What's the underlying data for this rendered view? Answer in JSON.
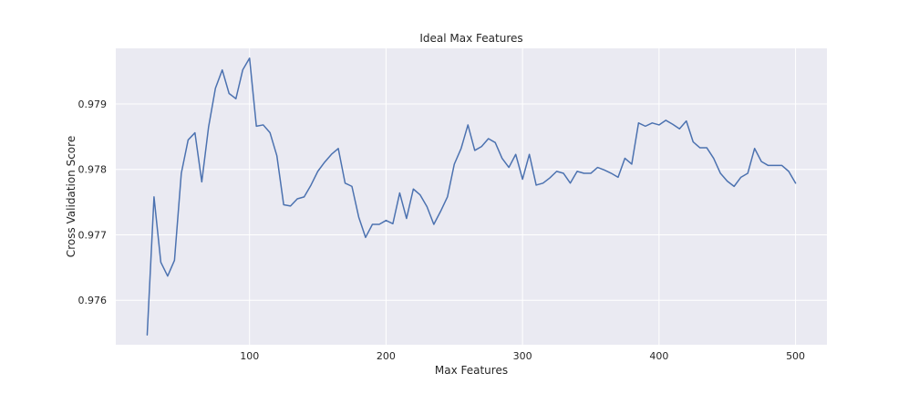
{
  "chart_data": {
    "type": "line",
    "title": "Ideal Max Features",
    "xlabel": "Max Features",
    "ylabel": "Cross Validation Score",
    "xlim": [
      2,
      523
    ],
    "ylim": [
      0.97532,
      0.97985
    ],
    "xticks": [
      100,
      200,
      300,
      400,
      500
    ],
    "xtick_labels": [
      "100",
      "200",
      "300",
      "400",
      "500"
    ],
    "yticks": [
      0.976,
      0.977,
      0.978,
      0.979
    ],
    "ytick_labels": [
      "0.976",
      "0.977",
      "0.978",
      "0.979"
    ],
    "grid": true,
    "colors": {
      "background": "#eaeaf2",
      "grid": "#ffffff",
      "line": "#4c72b0"
    },
    "series": [
      {
        "x": [
          25,
          30,
          35,
          40,
          45,
          50,
          55,
          60,
          65,
          70,
          75,
          80,
          85,
          90,
          95,
          100,
          105,
          110,
          115,
          120,
          125,
          130,
          135,
          140,
          145,
          150,
          155,
          160,
          165,
          170,
          175,
          180,
          185,
          190,
          195,
          200,
          205,
          210,
          215,
          220,
          225,
          230,
          235,
          240,
          245,
          250,
          255,
          260,
          265,
          270,
          275,
          280,
          285,
          290,
          295,
          300,
          305,
          310,
          315,
          320,
          325,
          330,
          335,
          340,
          345,
          350,
          355,
          360,
          365,
          370,
          375,
          380,
          385,
          390,
          395,
          400,
          405,
          410,
          415,
          420,
          425,
          430,
          435,
          440,
          445,
          450,
          455,
          460,
          465,
          470,
          475,
          480,
          485,
          490,
          495,
          500
        ],
        "values": [
          0.97547,
          0.97758,
          0.97658,
          0.97637,
          0.97661,
          0.97794,
          0.97845,
          0.97856,
          0.97781,
          0.97865,
          0.97924,
          0.97952,
          0.97916,
          0.97908,
          0.97952,
          0.9797,
          0.97866,
          0.97868,
          0.97856,
          0.97821,
          0.97746,
          0.97744,
          0.97755,
          0.97758,
          0.97776,
          0.97797,
          0.97811,
          0.97823,
          0.97832,
          0.97779,
          0.97774,
          0.97727,
          0.97696,
          0.97716,
          0.97716,
          0.97722,
          0.97717,
          0.97764,
          0.97725,
          0.9777,
          0.97761,
          0.97743,
          0.97716,
          0.97736,
          0.97758,
          0.97808,
          0.97832,
          0.97868,
          0.97829,
          0.97835,
          0.97847,
          0.97841,
          0.97817,
          0.97803,
          0.97823,
          0.97785,
          0.97823,
          0.97776,
          0.97779,
          0.97787,
          0.97797,
          0.97794,
          0.97779,
          0.97797,
          0.97794,
          0.97794,
          0.97803,
          0.97799,
          0.97794,
          0.97788,
          0.97817,
          0.97808,
          0.97871,
          0.97866,
          0.97871,
          0.97868,
          0.97875,
          0.97869,
          0.97862,
          0.97874,
          0.97842,
          0.97833,
          0.97833,
          0.97817,
          0.97794,
          0.97782,
          0.97774,
          0.97788,
          0.97794,
          0.97832,
          0.97812,
          0.97806,
          0.97806,
          0.97806,
          0.97797,
          0.97779
        ]
      }
    ]
  }
}
